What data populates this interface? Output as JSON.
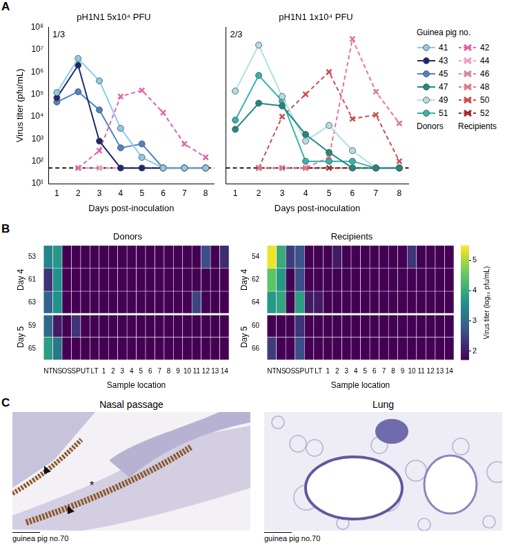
{
  "chart_data": [
    {
      "type": "line",
      "panel": "A",
      "annotation": "1/3",
      "title": "pH1N1 5x10⁴ PFU",
      "x_label": "Days post-inoculation",
      "y_label": "Virus titer (pfu/mL)",
      "x": [
        1,
        2,
        3,
        4,
        5,
        6,
        7,
        8
      ],
      "xlim": [
        0.6,
        8.4
      ],
      "xticks": [
        1,
        2,
        3,
        4,
        5,
        6,
        7,
        8
      ],
      "ylim": [
        10,
        100000000
      ],
      "yticks": [
        {
          "value": 10,
          "label": "10¹"
        },
        {
          "value": 100,
          "label": "10²"
        },
        {
          "value": 1000,
          "label": "10³"
        },
        {
          "value": 10000,
          "label": "10⁴"
        },
        {
          "value": 100000,
          "label": "10⁵"
        },
        {
          "value": 1000000,
          "label": "10⁶"
        },
        {
          "value": 10000000,
          "label": "10⁷"
        },
        {
          "value": 100000000,
          "label": "10⁸"
        }
      ],
      "log": "y",
      "grid": false,
      "reference_line": {
        "value": 50,
        "color": "#000000",
        "line_style": "dashed"
      },
      "series": [
        {
          "name": "41",
          "group": "Donors",
          "color": "#8ccbe6",
          "marker": "circle",
          "line_style": "solid",
          "values": [
            120000,
            4000000,
            400000,
            3000,
            150,
            50,
            50,
            50
          ]
        },
        {
          "name": "43",
          "group": "Donors",
          "color": "#1c2a6b",
          "marker": "circle",
          "line_style": "solid",
          "values": [
            70000,
            2000000,
            800,
            50,
            50,
            50,
            50,
            50
          ]
        },
        {
          "name": "45",
          "group": "Donors",
          "color": "#4d84c4",
          "marker": "circle",
          "line_style": "solid",
          "values": [
            45000,
            130000,
            20000,
            400,
            600,
            50,
            50,
            50
          ]
        },
        {
          "name": "42",
          "group": "Recipients",
          "color": "#e067a8",
          "marker": "cross",
          "line_style": "dashed",
          "values": [
            null,
            50,
            300,
            80000,
            150000,
            15000,
            600,
            150
          ]
        },
        {
          "name": "44",
          "group": "Recipients",
          "color": "#eba3c6",
          "marker": "cross",
          "line_style": "dashed",
          "values": [
            null,
            50,
            50,
            50,
            50,
            50,
            50,
            50
          ]
        },
        {
          "name": "46",
          "group": "Recipients",
          "color": "#d9879f",
          "marker": "cross",
          "line_style": "dashed",
          "values": [
            null,
            50,
            50,
            50,
            50,
            50,
            50,
            50
          ]
        }
      ]
    },
    {
      "type": "line",
      "annotation": "2/3",
      "title": "pH1N1 1x10⁴ PFU",
      "x_label": "Days post-inoculation",
      "x": [
        1,
        2,
        3,
        4,
        5,
        6,
        7,
        8
      ],
      "xlim": [
        0.6,
        8.4
      ],
      "xticks": [
        1,
        2,
        3,
        4,
        5,
        6,
        7,
        8
      ],
      "ylim": [
        10,
        100000000
      ],
      "yticks": [
        10,
        100,
        1000,
        10000,
        100000,
        1000000,
        10000000,
        100000000
      ],
      "log": "y",
      "grid": false,
      "tick_labels": "x",
      "reference_line": {
        "value": 50,
        "color": "#000000",
        "line_style": "dashed"
      },
      "legend": "right",
      "legend_title": "Guinea pig no.",
      "legend_groups": [
        "Donors",
        "Recipients"
      ],
      "series": [
        {
          "name": "47",
          "group": "Donors",
          "color": "#1f8a80",
          "marker": "circle",
          "line_style": "solid",
          "values": [
            2700,
            40000,
            30000,
            1600,
            250,
            50,
            50,
            50
          ]
        },
        {
          "name": "49",
          "group": "Donors",
          "color": "#b0dfe5",
          "marker": "circle",
          "line_style": "solid",
          "values": [
            140000,
            16000000,
            80000,
            800,
            4000,
            300,
            50,
            50
          ]
        },
        {
          "name": "51",
          "group": "Donors",
          "color": "#38b3ae",
          "marker": "circle",
          "line_style": "solid",
          "values": [
            7000,
            700000,
            50000,
            100,
            100,
            100,
            50,
            50
          ]
        },
        {
          "name": "48",
          "group": "Recipients",
          "color": "#e2788b",
          "marker": "cross",
          "line_style": "dashed",
          "values": [
            null,
            50,
            50,
            50,
            150,
            30000000,
            130000,
            5000
          ]
        },
        {
          "name": "50",
          "group": "Recipients",
          "color": "#c84f4d",
          "marker": "cross",
          "line_style": "dashed",
          "values": [
            null,
            50,
            10000,
            100000,
            1000000,
            8000,
            12000,
            100
          ]
        },
        {
          "name": "52",
          "group": "Recipients",
          "color": "#a6282a",
          "marker": "cross",
          "line_style": "dashed",
          "values": [
            null,
            50,
            50,
            50,
            50,
            50,
            50,
            50
          ]
        }
      ]
    },
    {
      "type": "heatmap",
      "panel": "B",
      "title": "Donors",
      "x_label": "Sample location",
      "columns": [
        "NT",
        "NS",
        "OS",
        "SP",
        "UT",
        "LT",
        "1",
        "2",
        "3",
        "4",
        "5",
        "6",
        "7",
        "8",
        "9",
        "10",
        "11",
        "12",
        "13",
        "14"
      ],
      "row_groups": [
        {
          "label": "Day 4",
          "rows": [
            "53",
            "61",
            "63"
          ]
        },
        {
          "label": "Day 5",
          "rows": [
            "59",
            "65"
          ]
        }
      ],
      "cells": [
        [
          3.4,
          3.7,
          1.7,
          1.7,
          1.7,
          1.7,
          1.7,
          1.7,
          1.7,
          1.7,
          1.7,
          1.7,
          1.7,
          1.7,
          1.7,
          1.7,
          1.7,
          2.6,
          1.7,
          2.2
        ],
        [
          2.3,
          3.6,
          1.7,
          1.7,
          1.7,
          1.7,
          1.7,
          1.7,
          1.7,
          1.7,
          1.7,
          1.7,
          1.7,
          1.7,
          1.7,
          1.7,
          1.7,
          1.7,
          1.7,
          1.7
        ],
        [
          2.9,
          3.6,
          1.7,
          1.7,
          1.7,
          1.7,
          1.7,
          1.7,
          1.7,
          1.7,
          1.7,
          1.7,
          1.7,
          1.7,
          1.7,
          1.7,
          2.5,
          1.7,
          1.7,
          1.7
        ],
        [
          3.0,
          2.0,
          1.7,
          2.3,
          1.7,
          1.7,
          1.7,
          1.7,
          1.7,
          1.7,
          1.7,
          1.7,
          1.7,
          1.7,
          1.7,
          1.7,
          1.7,
          1.7,
          1.7,
          1.7
        ],
        [
          3.8,
          3.2,
          1.7,
          1.7,
          1.7,
          1.7,
          1.7,
          1.7,
          1.7,
          1.7,
          1.7,
          1.7,
          1.7,
          1.7,
          1.7,
          1.7,
          1.7,
          1.7,
          1.7,
          1.7
        ]
      ]
    },
    {
      "type": "heatmap",
      "title": "Recipients",
      "x_label": "Sample location",
      "columns": [
        "NT",
        "NS",
        "OS",
        "SP",
        "UT",
        "LT",
        "1",
        "2",
        "3",
        "4",
        "5",
        "6",
        "7",
        "8",
        "9",
        "10",
        "11",
        "12",
        "13",
        "14"
      ],
      "row_groups": [
        {
          "label": "Day 4",
          "rows": [
            "54",
            "62",
            "64"
          ]
        },
        {
          "label": "Day 5",
          "rows": [
            "60",
            "66"
          ]
        }
      ],
      "cells": [
        [
          5.4,
          4.0,
          2.4,
          2.7,
          1.7,
          1.7,
          1.7,
          2.0,
          1.7,
          1.7,
          1.7,
          1.7,
          1.7,
          1.7,
          1.7,
          2.3,
          1.7,
          1.7,
          1.7,
          1.7
        ],
        [
          4.5,
          3.7,
          1.7,
          2.6,
          1.7,
          1.7,
          1.7,
          1.7,
          1.7,
          1.7,
          1.7,
          1.7,
          1.7,
          1.7,
          1.7,
          1.7,
          1.7,
          1.7,
          1.7,
          1.7
        ],
        [
          3.7,
          3.9,
          1.7,
          3.8,
          2.0,
          2.0,
          1.7,
          1.7,
          1.7,
          1.7,
          1.7,
          1.7,
          1.7,
          1.7,
          1.7,
          1.7,
          1.7,
          1.7,
          1.7,
          1.7
        ],
        [
          1.7,
          1.7,
          1.7,
          2.3,
          1.7,
          1.7,
          1.7,
          1.7,
          1.7,
          1.7,
          1.7,
          1.7,
          1.7,
          1.7,
          1.7,
          1.7,
          1.7,
          1.7,
          1.7,
          1.7
        ],
        [
          2.4,
          1.7,
          1.7,
          2.6,
          1.7,
          1.7,
          1.7,
          1.7,
          1.7,
          1.7,
          1.7,
          1.7,
          1.7,
          1.7,
          1.7,
          1.7,
          1.7,
          1.7,
          1.7,
          1.7
        ]
      ],
      "colorbar": {
        "label": "Virus titer (log₁₀ pfu/mL)",
        "range": [
          1.7,
          5.5
        ],
        "ticks": [
          2,
          3,
          4,
          5
        ]
      }
    }
  ],
  "images": {
    "panel": "C",
    "items": [
      {
        "title": "Nasal passage",
        "caption": "guinea pig no.70",
        "marks": [
          "*"
        ]
      },
      {
        "title": "Lung",
        "caption": "guinea pig no.70"
      }
    ]
  }
}
